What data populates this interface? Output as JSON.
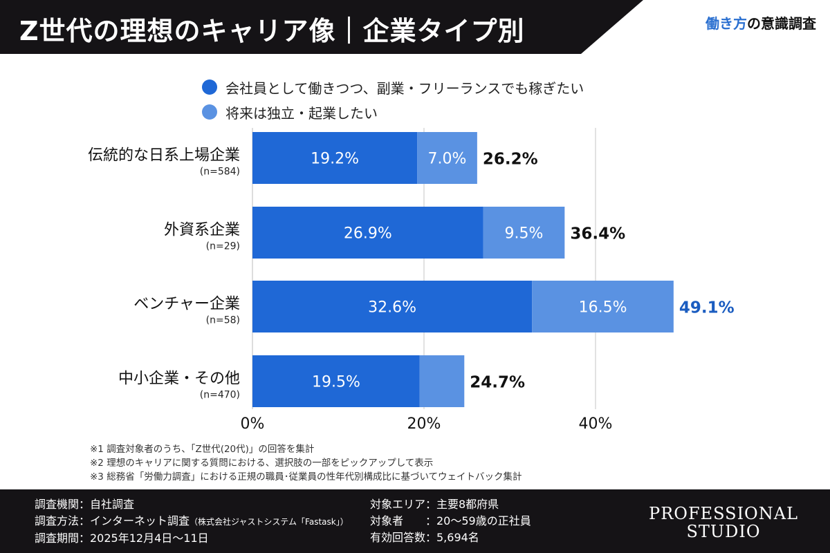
{
  "header": {
    "title": "Z世代の理想のキャリア像｜企業タイプ別",
    "brand_accent": "働き方",
    "brand_rest": "の意識調査"
  },
  "chart_data": {
    "type": "bar",
    "orientation": "horizontal",
    "stacked": true,
    "categories": [
      "伝統的な日系上場企業",
      "外資系企業",
      "ベンチャー企業",
      "中小企業・その他"
    ],
    "sample_sizes": [
      "(n=584)",
      "(n=29)",
      "(n=58)",
      "(n=470)"
    ],
    "series": [
      {
        "name": "会社員として働きつつ、副業・フリーランスでも稼ぎたい",
        "color": "#1f68d6",
        "values": [
          19.2,
          26.9,
          32.6,
          19.5
        ],
        "labels": [
          "19.2%",
          "26.9%",
          "32.6%",
          "19.5%"
        ]
      },
      {
        "name": "将来は独立・起業したい",
        "color": "#5a92e2",
        "values": [
          7.0,
          9.5,
          16.5,
          5.2
        ],
        "labels": [
          "7.0%",
          "9.5%",
          "16.5%",
          ""
        ]
      }
    ],
    "totals": [
      "26.2%",
      "36.4%",
      "49.1%",
      "24.7%"
    ],
    "highlight_total_index": 2,
    "highlight_color": "#1a5cc0",
    "xlim": [
      0,
      50
    ],
    "xticks": [
      "0%",
      "20%",
      "40%"
    ],
    "xtick_values": [
      0,
      20,
      40
    ],
    "grid": true,
    "legend_position": "top"
  },
  "notes": [
    "※1 調査対象者のうち、「Z世代(20代)」の回答を集計",
    "※2 理想のキャリアに関する質問における、選択肢の一部をピックアップして表示",
    "※3 総務省「労働力調査」における正規の職員･従業員の性年代別構成比に基づいてウェイトバック集計"
  ],
  "footer": {
    "left": [
      "調査機関：自社調査",
      "調査方法：インターネット調査",
      "調査期間：2025年12月4日〜11日"
    ],
    "method_note": "（株式会社ジャストシステム「Fastask」）",
    "right": [
      "対象エリア：主要8都府県",
      "対象者　　：20〜59歳の正社員",
      "有効回答数：5,694名"
    ],
    "logo": [
      "PROFESSIONAL",
      "STUDIO"
    ]
  }
}
